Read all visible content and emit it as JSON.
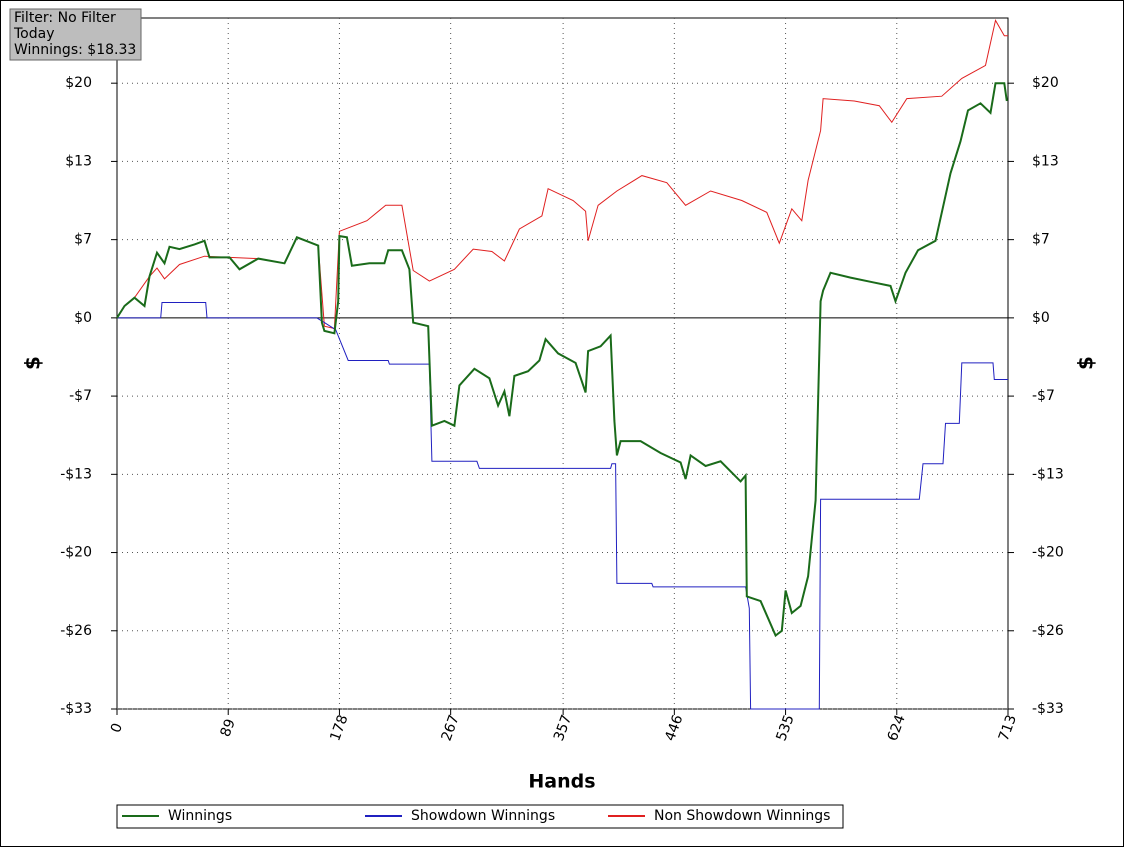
{
  "chart_data": {
    "type": "line",
    "annotations": [
      "Filter: No Filter",
      "Today",
      "Winnings: $18.33"
    ],
    "xlabel": "Hands",
    "ylabel": "$",
    "xlim": [
      0,
      713
    ],
    "xticks": [
      0,
      89,
      178,
      267,
      357,
      446,
      535,
      624,
      713
    ],
    "ylim": [
      -33,
      25.3
    ],
    "yticks": [
      {
        "value": -33,
        "label": "-$33"
      },
      {
        "value": -26.4,
        "label": "-$26"
      },
      {
        "value": -19.8,
        "label": "-$20"
      },
      {
        "value": -13.2,
        "label": "-$13"
      },
      {
        "value": -6.6,
        "label": "-$7"
      },
      {
        "value": 0,
        "label": "$0"
      },
      {
        "value": 6.6,
        "label": "$7"
      },
      {
        "value": 13.2,
        "label": "$13"
      },
      {
        "value": 19.8,
        "label": "$20"
      }
    ],
    "grid": true,
    "series": [
      {
        "name": "Winnings",
        "color": "#1a6b1a",
        "x": [
          0,
          6,
          14,
          22,
          26,
          32,
          38,
          42,
          50,
          62,
          70,
          74,
          90,
          98,
          113,
          134,
          144,
          161,
          164,
          166,
          174,
          177,
          178,
          184,
          188,
          202,
          214,
          217,
          228,
          234,
          237,
          249,
          252,
          262,
          270,
          274,
          286,
          298,
          305,
          310,
          314,
          318,
          329,
          338,
          343,
          353,
          367,
          375,
          377,
          387,
          395,
          398,
          400,
          403,
          419,
          435,
          451,
          455,
          459,
          471,
          483,
          499,
          503,
          504,
          515,
          527,
          532,
          535,
          540,
          547,
          553,
          559,
          563,
          565,
          571,
          587,
          605,
          619,
          623,
          631,
          641,
          655,
          663,
          667,
          675,
          681,
          691,
          699,
          703,
          710,
          712
        ],
        "values": [
          0,
          1.0,
          1.7,
          1.0,
          3.5,
          5.5,
          4.6,
          6.0,
          5.8,
          6.2,
          6.5,
          5.1,
          5.1,
          4.1,
          5.0,
          4.6,
          6.8,
          6.1,
          -0.4,
          -1.1,
          -1.3,
          1.4,
          6.9,
          6.8,
          4.4,
          4.6,
          4.6,
          5.7,
          5.7,
          4.1,
          -0.4,
          -0.7,
          -9.1,
          -8.7,
          -9.1,
          -5.7,
          -4.3,
          -5.1,
          -7.4,
          -6.2,
          -8.3,
          -4.9,
          -4.5,
          -3.6,
          -1.8,
          -3.0,
          -3.8,
          -6.3,
          -2.8,
          -2.4,
          -1.5,
          -8.7,
          -11.6,
          -10.4,
          -10.4,
          -11.4,
          -12.2,
          -13.6,
          -11.6,
          -12.5,
          -12.1,
          -13.8,
          -13.3,
          -23.5,
          -23.9,
          -26.8,
          -26.4,
          -23.0,
          -24.9,
          -24.3,
          -21.8,
          -15.4,
          1.4,
          2.3,
          3.8,
          3.4,
          3.0,
          2.7,
          1.4,
          3.8,
          5.7,
          6.5,
          10.3,
          12.2,
          14.9,
          17.5,
          18.1,
          17.3,
          19.8,
          19.8,
          18.3
        ]
      },
      {
        "name": "Showdown Winnings",
        "color": "#2020c0",
        "x": [
          0,
          35,
          36,
          71,
          72,
          160,
          166,
          175,
          185,
          217,
          218,
          250,
          252,
          288,
          290,
          395,
          396,
          399,
          400,
          428,
          429,
          503,
          506,
          507,
          562,
          563,
          642,
          645,
          661,
          663,
          674,
          676,
          701,
          702,
          713
        ],
        "values": [
          0,
          0,
          1.3,
          1.3,
          0,
          0,
          -0.4,
          -1.0,
          -3.6,
          -3.6,
          -3.9,
          -3.9,
          -12.1,
          -12.1,
          -12.7,
          -12.7,
          -12.3,
          -12.3,
          -22.4,
          -22.4,
          -22.7,
          -22.7,
          -24.5,
          -33,
          -33,
          -15.3,
          -15.3,
          -12.3,
          -12.3,
          -8.9,
          -8.9,
          -3.8,
          -3.8,
          -5.2,
          -5.2
        ]
      },
      {
        "name": "Non Showdown Winnings",
        "color": "#e02020",
        "x": [
          0,
          6,
          14,
          26,
          32,
          38,
          50,
          70,
          90,
          113,
          134,
          144,
          161,
          166,
          174,
          178,
          200,
          215,
          228,
          237,
          250,
          270,
          285,
          300,
          310,
          322,
          340,
          345,
          365,
          375,
          377,
          385,
          400,
          420,
          440,
          455,
          475,
          500,
          520,
          530,
          540,
          548,
          553,
          563,
          565,
          590,
          610,
          620,
          632,
          660,
          676,
          695,
          703,
          710,
          713
        ],
        "values": [
          0,
          1.0,
          1.7,
          3.5,
          4.2,
          3.3,
          4.5,
          5.2,
          5.1,
          5.0,
          4.6,
          6.8,
          6.1,
          -0.7,
          -0.9,
          7.3,
          8.2,
          9.5,
          9.5,
          4.0,
          3.1,
          4.1,
          5.8,
          5.6,
          4.8,
          7.5,
          8.6,
          10.9,
          9.9,
          9.0,
          6.5,
          9.5,
          10.7,
          12.0,
          11.4,
          9.5,
          10.7,
          9.9,
          8.9,
          6.3,
          9.2,
          8.2,
          11.6,
          15.8,
          18.5,
          18.3,
          17.9,
          16.5,
          18.5,
          18.7,
          20.2,
          21.3,
          25.1,
          23.8,
          23.8
        ]
      }
    ]
  }
}
